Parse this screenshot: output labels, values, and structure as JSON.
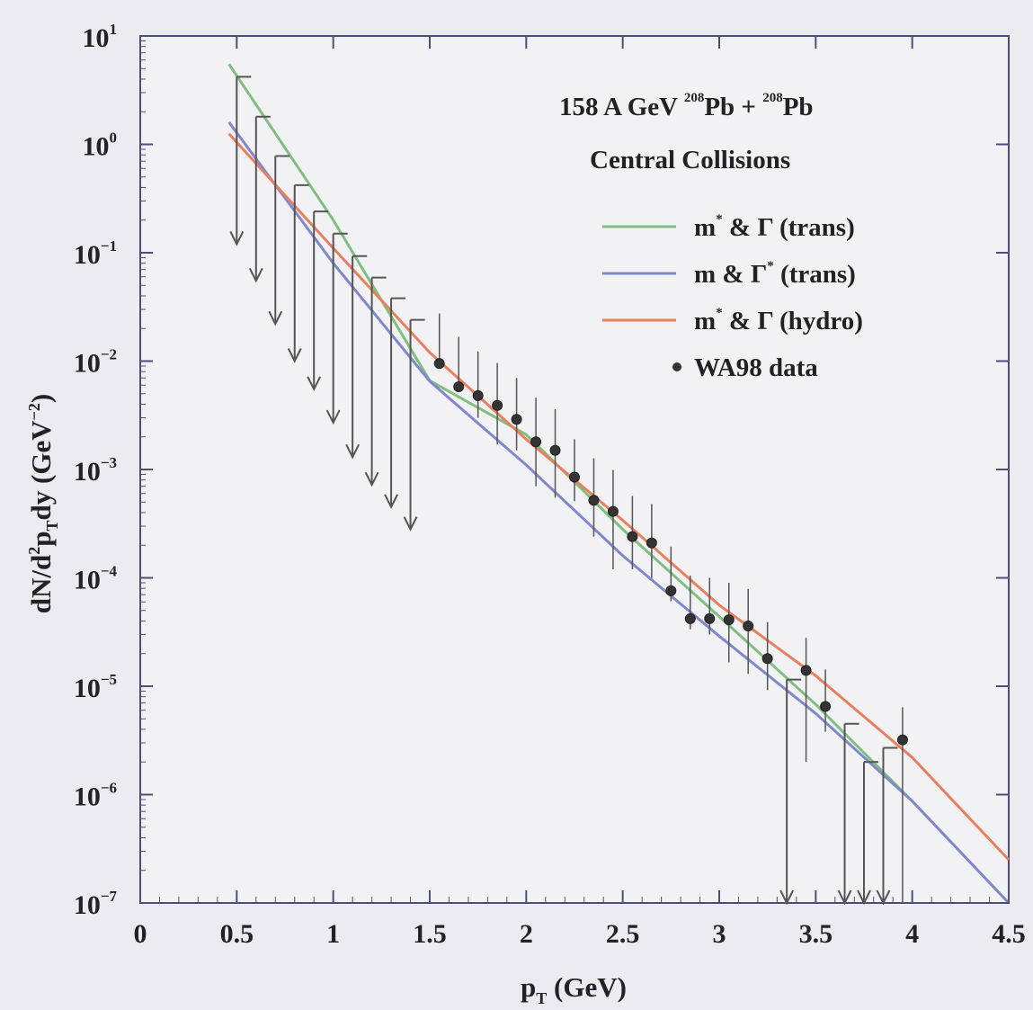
{
  "chart_data": {
    "type": "scatter",
    "title": "",
    "annotation": {
      "line1": {
        "pre": "158 A GeV ",
        "sup1": "208",
        "mid": "Pb + ",
        "sup2": "208",
        "post": "Pb"
      },
      "line2": "Central Collisions"
    },
    "xlabel": {
      "main": "p",
      "sub": "T",
      "rest": " (GeV)"
    },
    "ylabel": {
      "a": "dN/d",
      "sup1": "2",
      "b": "p",
      "sub1": "T",
      "c": "dy (GeV",
      "sup2": "−2",
      "d": ")"
    },
    "xlim": [
      0,
      4.5
    ],
    "ylim": [
      1e-07,
      10
    ],
    "yscale": "log",
    "grid": false,
    "legend_position": "top-right",
    "x_ticks": [
      "0",
      "0.5",
      "1",
      "1.5",
      "2",
      "2.5",
      "3",
      "3.5",
      "4",
      "4.5"
    ],
    "x_tick_values": [
      0,
      0.5,
      1,
      1.5,
      2,
      2.5,
      3,
      3.5,
      4,
      4.5
    ],
    "y_ticks": [
      {
        "value": 10,
        "base": "10",
        "exp": "1"
      },
      {
        "value": 1,
        "base": "10",
        "exp": "0"
      },
      {
        "value": 0.1,
        "base": "10",
        "exp": "-1"
      },
      {
        "value": 0.01,
        "base": "10",
        "exp": "-2"
      },
      {
        "value": 0.001,
        "base": "10",
        "exp": "-3"
      },
      {
        "value": 0.0001,
        "base": "10",
        "exp": "-4"
      },
      {
        "value": 1e-05,
        "base": "10",
        "exp": "-5"
      },
      {
        "value": 1e-06,
        "base": "10",
        "exp": "-6"
      },
      {
        "value": 1e-07,
        "base": "10",
        "exp": "-7"
      }
    ],
    "series": [
      {
        "name": "m* & Γ (trans)",
        "legend": {
          "a": "m",
          "sup1": "*",
          "b": " & Γ",
          "sup2": "",
          "c": " (trans)"
        },
        "color": "#7fbf7f",
        "kind": "line",
        "x": [
          0.46,
          1.0,
          1.5,
          2.0,
          2.5,
          3.0,
          3.5,
          4.0,
          4.5
        ],
        "y": [
          5.5,
          0.2,
          0.0066,
          0.0021,
          0.00028,
          4.4e-05,
          6.8e-06,
          8.7e-07,
          1e-07
        ]
      },
      {
        "name": "m & Γ* (trans)",
        "legend": {
          "a": "m",
          "sup1": "",
          "b": " & Γ",
          "sup2": "*",
          "c": " (trans)"
        },
        "color": "#8088cc",
        "kind": "line",
        "x": [
          0.46,
          1.0,
          1.5,
          2.0,
          2.5,
          3.0,
          3.5,
          4.0,
          4.5
        ],
        "y": [
          1.6,
          0.08,
          0.0065,
          0.0011,
          0.00016,
          2.9e-05,
          5.6e-06,
          8.7e-07,
          1e-07
        ]
      },
      {
        "name": "m* & Γ (hydro)",
        "legend": {
          "a": "m",
          "sup1": "*",
          "b": " & Γ",
          "sup2": "",
          "c": " (hydro)"
        },
        "color": "#e88060",
        "kind": "line",
        "x": [
          0.46,
          1.0,
          1.5,
          2.0,
          2.5,
          3.0,
          3.5,
          4.0,
          4.5
        ],
        "y": [
          1.25,
          0.11,
          0.012,
          0.0019,
          0.00034,
          5.6e-05,
          1.25e-05,
          2.2e-06,
          2.5e-07
        ]
      },
      {
        "name": "WA98 data",
        "legend": {
          "a": "WA98 data",
          "sup1": "",
          "b": "",
          "sup2": "",
          "c": ""
        },
        "color": "#333333",
        "kind": "points",
        "x": [
          1.55,
          1.65,
          1.75,
          1.85,
          1.95,
          2.05,
          2.15,
          2.25,
          2.35,
          2.45,
          2.55,
          2.65,
          2.75,
          2.85,
          2.95,
          3.05,
          3.15,
          3.25,
          3.45,
          3.55,
          3.95
        ],
        "y": [
          0.0095,
          0.0058,
          0.0048,
          0.0039,
          0.0029,
          0.0018,
          0.0015,
          0.00085,
          0.00052,
          0.00041,
          0.00024,
          0.00021,
          7.6e-05,
          4.2e-05,
          4.2e-05,
          4.1e-05,
          3.6e-05,
          1.8e-05,
          1.4e-05,
          6.5e-06,
          3.2e-06
        ],
        "err_low": [
          0.00025,
          0.0004,
          0.0018,
          0.0022,
          0.0014,
          0.0011,
          0.00095,
          0.00034,
          0.00028,
          0.00029,
          0.00012,
          0.00011,
          1.5e-05,
          8.5e-06,
          1.2e-05,
          2.44e-05,
          2.3e-05,
          8.8e-06,
          1.2e-05,
          2.7e-06,
          3.2e-06
        ],
        "err_high": [
          0.018,
          0.011,
          0.0075,
          0.0057,
          0.0041,
          0.0028,
          0.0021,
          0.00105,
          0.00075,
          0.00058,
          0.00033,
          0.00027,
          0.000118,
          6.3e-05,
          5.8e-05,
          4.9e-05,
          4.3e-05,
          2.1e-05,
          1.4e-05,
          7.8e-06,
          3.2e-06
        ]
      },
      {
        "name": "upper limits",
        "kind": "upper_limits",
        "color": "#555555",
        "x": [
          0.5,
          0.6,
          0.7,
          0.8,
          0.9,
          1.0,
          1.1,
          1.2,
          1.3,
          1.4,
          3.35,
          3.65,
          3.75,
          3.85
        ],
        "upper": [
          4.2,
          1.8,
          0.78,
          0.42,
          0.24,
          0.15,
          0.093,
          0.059,
          0.038,
          0.024,
          1.15e-05,
          4.5e-06,
          2e-06,
          2.7e-06
        ],
        "lower": [
          0.12,
          0.055,
          0.022,
          0.01,
          0.0055,
          0.0027,
          0.0013,
          0.00072,
          0.00045,
          0.00028,
          1e-07,
          1e-07,
          1e-07,
          1e-07
        ]
      }
    ]
  }
}
